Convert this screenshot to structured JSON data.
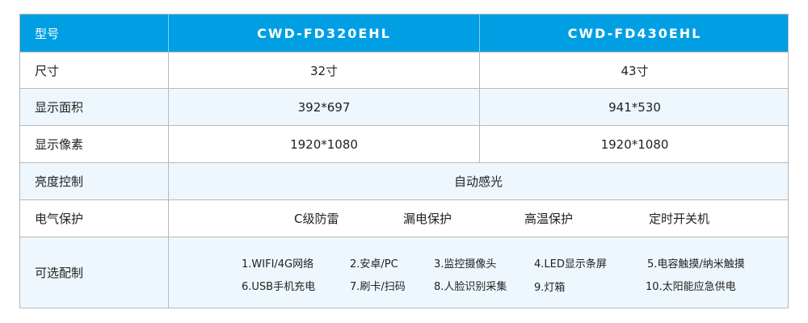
{
  "header": {
    "label": "型号",
    "models": [
      "CWD-FD320EHL",
      "CWD-FD430EHL"
    ]
  },
  "rows": {
    "size": {
      "label": "尺寸",
      "values": [
        "32寸",
        "43寸"
      ]
    },
    "area": {
      "label": "显示面积",
      "values": [
        "392*697",
        "941*530"
      ]
    },
    "pixels": {
      "label": "显示像素",
      "values": [
        "1920*1080",
        "1920*1080"
      ]
    },
    "brightness": {
      "label": "亮度控制",
      "value": "自动感光"
    },
    "electrical": {
      "label": "电气保护",
      "items": [
        "C级防雷",
        "漏电保护",
        "高温保护",
        "定时开关机"
      ]
    },
    "options": {
      "label": "可选配制",
      "items": [
        "1.WIFI/4G网络",
        "2.安卓/PC",
        "3.监控摄像头",
        "4.LED显示条屏",
        "5.电容触摸/纳米触摸",
        "6.USB手机充电",
        "7.刷卡/扫码",
        "8.人脸识别采集",
        "9.灯箱",
        "10.太阳能应急供电"
      ]
    }
  },
  "colors": {
    "header": "#009fe3",
    "alt_row": "#eef7fd",
    "border": "#b8b8b8"
  }
}
